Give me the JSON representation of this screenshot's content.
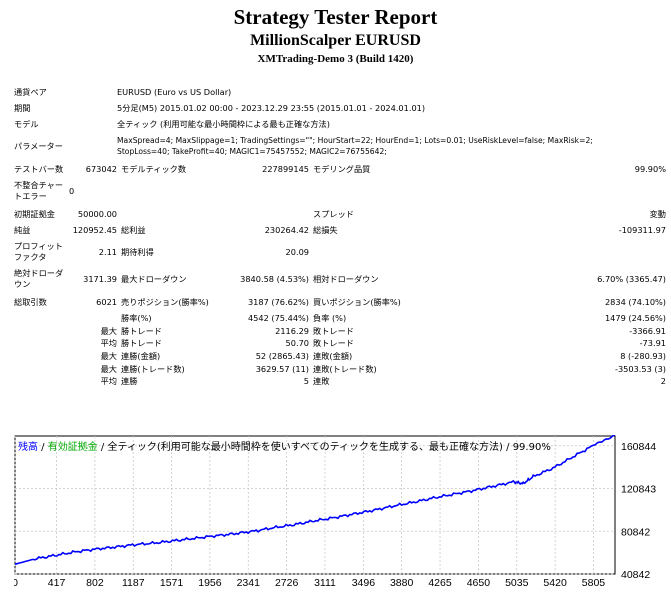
{
  "header": {
    "title": "Strategy Tester Report",
    "expert": "MillionScalper EURUSD",
    "server": "XMTrading-Demo 3 (Build 1420)"
  },
  "settings": {
    "symbol_label": "通貨ペア",
    "symbol": "EURUSD (Euro vs US Dollar)",
    "period_label": "期間",
    "period": "5分足(M5) 2015.01.02 00:00 - 2023.12.29 23:55 (2015.01.01 - 2024.01.01)",
    "model_label": "モデル",
    "model": "全ティック (利用可能な最小時間枠による最も正確な方法)",
    "params_label": "パラメーター",
    "params_line1": "MaxSpread=4; MaxSlippage=1; TradingSettings=\"\"; HourStart=22; HourEnd=1; Lots=0.01; UseRiskLevel=false; MaxRisk=2;",
    "params_line2": "StopLoss=40; TakeProfit=40; MAGIC1=75457552; MAGIC2=76755642;"
  },
  "results": {
    "bars_label": "テストバー数",
    "bars": "673042",
    "ticks_label": "モデルティック数",
    "ticks": "227899145",
    "quality_label": "モデリング品質",
    "quality": "99.90%",
    "mismatch_label_1": "不整合チャー",
    "mismatch_label_2": "トエラー",
    "mismatch": "0",
    "deposit_label": "初期証拠金",
    "deposit": "50000.00",
    "spread_label": "スプレッド",
    "spread": "変動",
    "net_label": "純益",
    "net": "120952.45",
    "gross_profit_label": "総利益",
    "gross_profit": "230264.42",
    "gross_loss_label": "総損失",
    "gross_loss": "-109311.97",
    "pf_label_1": "プロフィット",
    "pf_label_2": "ファクタ",
    "pf": "2.11",
    "payoff_label": "期待利得",
    "payoff": "20.09",
    "abs_dd_label_1": "絶対ドローダ",
    "abs_dd_label_2": "ウン",
    "abs_dd": "3171.39",
    "max_dd_label": "最大ドローダウン",
    "max_dd": "3840.58 (4.53%)",
    "rel_dd_label": "相対ドローダウン",
    "rel_dd": "6.70% (3365.47)",
    "trades_label": "総取引数",
    "trades": "6021",
    "short_label": "売りポジション(勝率%)",
    "short": "3187 (76.62%)",
    "long_label": "買いポジション(勝率%)",
    "long": "2834 (74.10%)",
    "win_label": "勝率(%)",
    "win": "4542 (75.44%)",
    "loss_label": "負率 (%)",
    "loss": "1479 (24.56%)",
    "max_word": "最大",
    "avg_word": "平均",
    "max_win_label": "勝トレード",
    "max_win": "2116.29",
    "max_loss_label": "敗トレード",
    "max_loss": "-3366.91",
    "avg_win_label": "勝トレード",
    "avg_win": "50.70",
    "avg_loss_label": "敗トレード",
    "avg_loss": "-73.91",
    "cons_win_amt_label": "連勝(金額)",
    "cons_win_amt": "52 (2865.43)",
    "cons_loss_amt_label": "連敗(金額)",
    "cons_loss_amt": "8 (-280.93)",
    "cons_win_cnt_label": "連勝(トレード数)",
    "cons_win_cnt": "3629.57 (11)",
    "cons_loss_cnt_label": "連敗(トレード数)",
    "cons_loss_cnt": "-3503.53 (3)",
    "avg_cons_win_label": "連勝",
    "avg_cons_win": "5",
    "avg_cons_loss_label": "連敗",
    "avg_cons_loss": "2"
  },
  "chart_data": {
    "type": "line",
    "legend_balance": "残高",
    "legend_sep1": " / ",
    "legend_equity": "有効証拠金",
    "legend_rest": " / 全ティック(利用可能な最小時間枠を使いすべてのティックを生成する、最も正確な方法) / 99.90%",
    "balance_color": "#0000ff",
    "equity_color": "#00aa00",
    "grid": true,
    "xticks": [
      "0",
      "417",
      "802",
      "1187",
      "1571",
      "1956",
      "2341",
      "2726",
      "3111",
      "3496",
      "3880",
      "4265",
      "4650",
      "5035",
      "5420",
      "5805"
    ],
    "xtick_values": [
      0,
      417,
      802,
      1187,
      1571,
      1956,
      2341,
      2726,
      3111,
      3496,
      3880,
      4265,
      4650,
      5035,
      5420,
      5805
    ],
    "yticks": [
      "160844",
      "120843",
      "80842",
      "40842"
    ],
    "ytick_values": [
      160844,
      120843,
      80842,
      40842
    ],
    "xlim": [
      0,
      6021
    ],
    "ylim": [
      40842,
      170000
    ],
    "x": [
      0,
      200,
      400,
      600,
      800,
      1000,
      1200,
      1400,
      1600,
      1800,
      2000,
      2200,
      2400,
      2600,
      2800,
      3000,
      3200,
      3400,
      3600,
      3800,
      4000,
      4200,
      4400,
      4600,
      4800,
      5000,
      5100,
      5200,
      5400,
      5600,
      5800,
      6021
    ],
    "y": [
      50000,
      55000,
      58200,
      61500,
      64000,
      66000,
      68300,
      69800,
      72000,
      74200,
      76500,
      78500,
      81000,
      84200,
      87000,
      90500,
      93500,
      97000,
      100500,
      104500,
      108000,
      112000,
      115500,
      119000,
      123000,
      127000,
      125500,
      132000,
      140000,
      150500,
      161000,
      170952
    ]
  }
}
